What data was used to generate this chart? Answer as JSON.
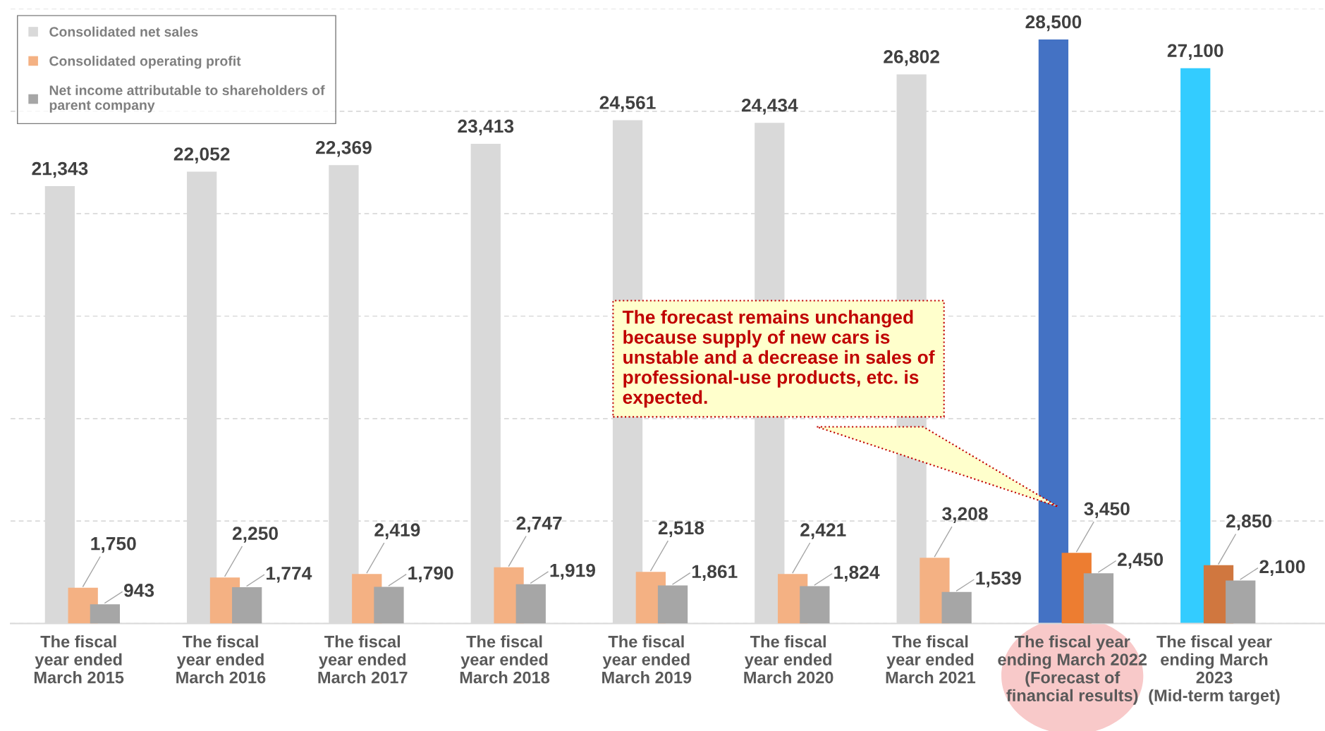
{
  "chart_data": {
    "type": "bar",
    "categories": [
      "The fiscal\nyear ended\nMarch 2015",
      "The fiscal\nyear ended\nMarch 2016",
      "The fiscal\nyear ended\nMarch 2017",
      "The fiscal\nyear ended\nMarch 2018",
      "The fiscal\nyear ended\nMarch 2019",
      "The fiscal\nyear ended\nMarch 2020",
      "The fiscal\nyear ended\nMarch 2021",
      "The fiscal year\nending March 2022\n(Forecast of\nfinancial results)",
      "The fiscal year\nending March\n2023\n(Mid-term target)"
    ],
    "series": [
      {
        "name": "Consolidated net sales",
        "color": "#d9d9d9",
        "colors": [
          "#d9d9d9",
          "#d9d9d9",
          "#d9d9d9",
          "#d9d9d9",
          "#d9d9d9",
          "#d9d9d9",
          "#d9d9d9",
          "#4472c4",
          "#33ccff"
        ],
        "values": [
          21343,
          22052,
          22369,
          23413,
          24561,
          24434,
          26802,
          28500,
          27100
        ],
        "value_labels": [
          "21,343",
          "22,052",
          "22,369",
          "23,413",
          "24,561",
          "24,434",
          "26,802",
          "28,500",
          "27,100"
        ]
      },
      {
        "name": "Consolidated operating profit",
        "color": "#f4b183",
        "colors": [
          "#f4b183",
          "#f4b183",
          "#f4b183",
          "#f4b183",
          "#f4b183",
          "#f4b183",
          "#f4b183",
          "#ed7d31",
          "#d0773f"
        ],
        "values": [
          1750,
          2250,
          2419,
          2747,
          2518,
          2421,
          3208,
          3450,
          2850
        ],
        "value_labels": [
          "1,750",
          "2,250",
          "2,419",
          "2,747",
          "2,518",
          "2,421",
          "3,208",
          "3,450",
          "2,850"
        ]
      },
      {
        "name": "Net income attributable to shareholders of\nparent company",
        "color": "#a6a6a6",
        "colors": [
          "#a6a6a6",
          "#a6a6a6",
          "#a6a6a6",
          "#a6a6a6",
          "#a6a6a6",
          "#a6a6a6",
          "#a6a6a6",
          "#a6a6a6",
          "#a6a6a6"
        ],
        "values": [
          943,
          1774,
          1790,
          1919,
          1861,
          1824,
          1539,
          2450,
          2100
        ],
        "value_labels": [
          "943",
          "1,774",
          "1,790",
          "1,919",
          "1,861",
          "1,824",
          "1,539",
          "2,450",
          "2,100"
        ]
      }
    ],
    "ylim": [
      0,
      30000
    ],
    "yticks": [
      {
        "value": 0,
        "label": null
      },
      {
        "value": 5000,
        "label": null
      },
      {
        "value": 10000,
        "label": null
      },
      {
        "value": 15000,
        "label": null
      },
      {
        "value": 20000,
        "label": null
      },
      {
        "value": 25000,
        "label": null
      },
      {
        "value": 30000,
        "label": null
      }
    ],
    "tick_labels": "x",
    "grid": "y",
    "legend": "top left",
    "annotations": [
      "The forecast remains unchanged\nbecause supply of new cars is\nunstable and a decrease in sales of\nprofessional-use products, etc. is\nexpected."
    ]
  }
}
